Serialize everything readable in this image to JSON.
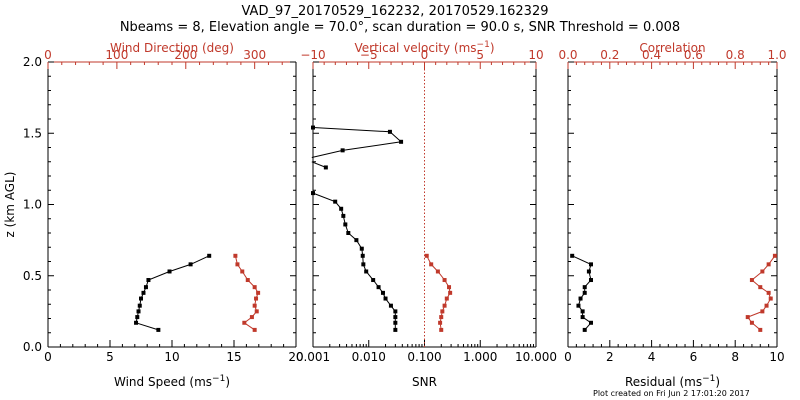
{
  "title_line1": "VAD_97_20170529_162232, 20170529.162329",
  "title_line2": "Nbeams = 8, Elevation angle = 70.0°, scan duration = 90.0 s, SNR Threshold = 0.008",
  "footer": "Plot created on Fri Jun  2 17:01:20 2017",
  "colors": {
    "black": "#000000",
    "red": "#c0392b"
  },
  "chart_data": [
    {
      "type": "line",
      "ylabel": "z (km AGL)",
      "ylim": [
        0,
        2
      ],
      "yticks": [
        "0.0",
        "0.5",
        "1.0",
        "1.5",
        "2.0"
      ],
      "bottom_axis": {
        "label_text": "Wind Speed (ms",
        "label_sup": "−1",
        "label_end": ")",
        "xlim": [
          0,
          20
        ],
        "ticks": [
          "0",
          "5",
          "10",
          "15",
          "20"
        ]
      },
      "top_axis": {
        "label_text": "Wind Direction (deg)",
        "xlim": [
          0,
          360
        ],
        "ticks": [
          "0",
          "100",
          "200",
          "300"
        ]
      },
      "series": [
        {
          "axis": "bottom",
          "color": "black",
          "x": [
            13.0,
            11.5,
            9.8,
            8.1,
            7.9,
            7.7,
            7.5,
            7.4,
            7.3,
            7.2,
            7.1,
            8.9
          ],
          "y": [
            0.64,
            0.58,
            0.53,
            0.47,
            0.42,
            0.38,
            0.34,
            0.29,
            0.25,
            0.21,
            0.17,
            0.12
          ]
        },
        {
          "axis": "top",
          "color": "red",
          "x": [
            272,
            275,
            282,
            290,
            300,
            305,
            302,
            300,
            303,
            296,
            285,
            300
          ],
          "y": [
            0.64,
            0.58,
            0.53,
            0.47,
            0.42,
            0.38,
            0.34,
            0.29,
            0.25,
            0.21,
            0.17,
            0.12
          ]
        }
      ]
    },
    {
      "type": "line",
      "ylim": [
        0,
        2
      ],
      "bottom_axis": {
        "label_text": "SNR",
        "scale": "log",
        "xlim": [
          0.001,
          10
        ],
        "ticks": [
          "0.001",
          "0.010",
          "0.100",
          "1.000",
          "10.000"
        ],
        "tick_values": [
          0.001,
          0.01,
          0.1,
          1,
          10
        ]
      },
      "top_axis": {
        "label_text": "Vertical velocity (ms",
        "label_sup": "−1",
        "label_end": ")",
        "xlim": [
          -10,
          10
        ],
        "ticks": [
          "−10",
          "−5",
          "0",
          "5",
          "10"
        ],
        "zero_line": "dotted"
      },
      "series": [
        {
          "axis": "bottom",
          "color": "black",
          "segments": [
            {
              "x": [
                0.001,
                0.024,
                0.038,
                0.0034,
                0.00095
              ],
              "y": [
                1.54,
                1.51,
                1.44,
                1.38,
                1.33
              ]
            },
            {
              "x": [
                0.00095,
                0.0017
              ],
              "y": [
                1.3,
                1.26
              ]
            },
            {
              "x": [
                0.001,
                0.0025,
                0.0032,
                0.0035,
                0.0038,
                0.0043,
                0.006,
                0.0075,
                0.0078,
                0.008,
                0.009,
                0.012,
                0.015,
                0.018,
                0.02,
                0.025,
                0.03,
                0.03,
                0.03,
                0.03
              ],
              "y": [
                1.08,
                1.02,
                0.97,
                0.92,
                0.86,
                0.8,
                0.75,
                0.69,
                0.64,
                0.58,
                0.53,
                0.47,
                0.42,
                0.38,
                0.34,
                0.29,
                0.25,
                0.21,
                0.17,
                0.12
              ]
            }
          ]
        },
        {
          "axis": "top",
          "color": "red",
          "x": [
            0.2,
            0.6,
            1.2,
            1.8,
            2.2,
            2.3,
            2.0,
            1.8,
            1.6,
            1.5,
            1.4,
            1.5
          ],
          "y": [
            0.64,
            0.58,
            0.53,
            0.47,
            0.42,
            0.38,
            0.34,
            0.29,
            0.25,
            0.21,
            0.17,
            0.12
          ]
        }
      ]
    },
    {
      "type": "line",
      "ylim": [
        0,
        2
      ],
      "bottom_axis": {
        "label_text": "Residual (ms",
        "label_sup": "−1",
        "label_end": ")",
        "xlim": [
          0,
          10
        ],
        "ticks": [
          "0",
          "2",
          "4",
          "6",
          "8",
          "10"
        ]
      },
      "top_axis": {
        "label_text": "Correlation",
        "xlim": [
          0,
          1
        ],
        "ticks": [
          "0.0",
          "0.2",
          "0.4",
          "0.6",
          "0.8",
          "1.0"
        ]
      },
      "series": [
        {
          "axis": "bottom",
          "color": "black",
          "x": [
            0.2,
            1.1,
            1.0,
            1.1,
            0.8,
            0.8,
            0.6,
            0.5,
            0.7,
            0.7,
            1.1,
            0.8
          ],
          "y": [
            0.64,
            0.58,
            0.53,
            0.47,
            0.42,
            0.38,
            0.34,
            0.29,
            0.25,
            0.21,
            0.17,
            0.12
          ]
        },
        {
          "axis": "top",
          "color": "red",
          "x": [
            0.99,
            0.96,
            0.93,
            0.88,
            0.92,
            0.96,
            0.97,
            0.95,
            0.93,
            0.86,
            0.88,
            0.92
          ],
          "y": [
            0.64,
            0.58,
            0.53,
            0.47,
            0.42,
            0.38,
            0.34,
            0.29,
            0.25,
            0.21,
            0.17,
            0.12
          ]
        }
      ]
    }
  ]
}
